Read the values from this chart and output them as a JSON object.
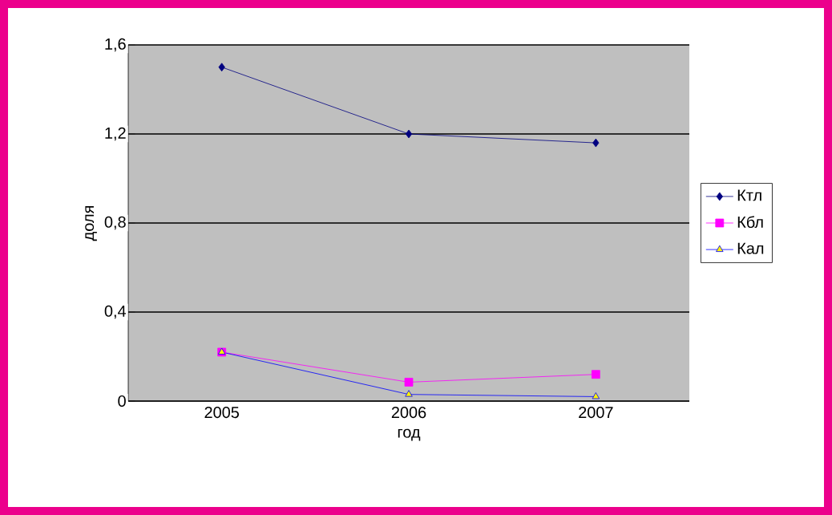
{
  "chart_data": {
    "type": "line",
    "xlabel": "год",
    "ylabel": "доля",
    "categories": [
      "2005",
      "2006",
      "2007"
    ],
    "series": [
      {
        "name": "Ктл",
        "color": "#000080",
        "marker": "diamond",
        "values": [
          1.5,
          1.2,
          1.16
        ]
      },
      {
        "name": "Кбл",
        "color": "#ff00ff",
        "marker": "square",
        "values": [
          0.22,
          0.085,
          0.12
        ]
      },
      {
        "name": "Кал",
        "color": "#0000ff",
        "marker": "triangle",
        "values": [
          0.22,
          0.03,
          0.02
        ]
      }
    ],
    "ylim": [
      0,
      1.6
    ],
    "yticks": [
      0,
      {
        "value": 0.4,
        "label": "0,4"
      },
      {
        "value": 0.8,
        "label": "0,8"
      },
      {
        "value": 1.2,
        "label": "1,2"
      },
      {
        "value": 1.6,
        "label": "1,6"
      }
    ],
    "grid": "y",
    "legend": "right"
  }
}
